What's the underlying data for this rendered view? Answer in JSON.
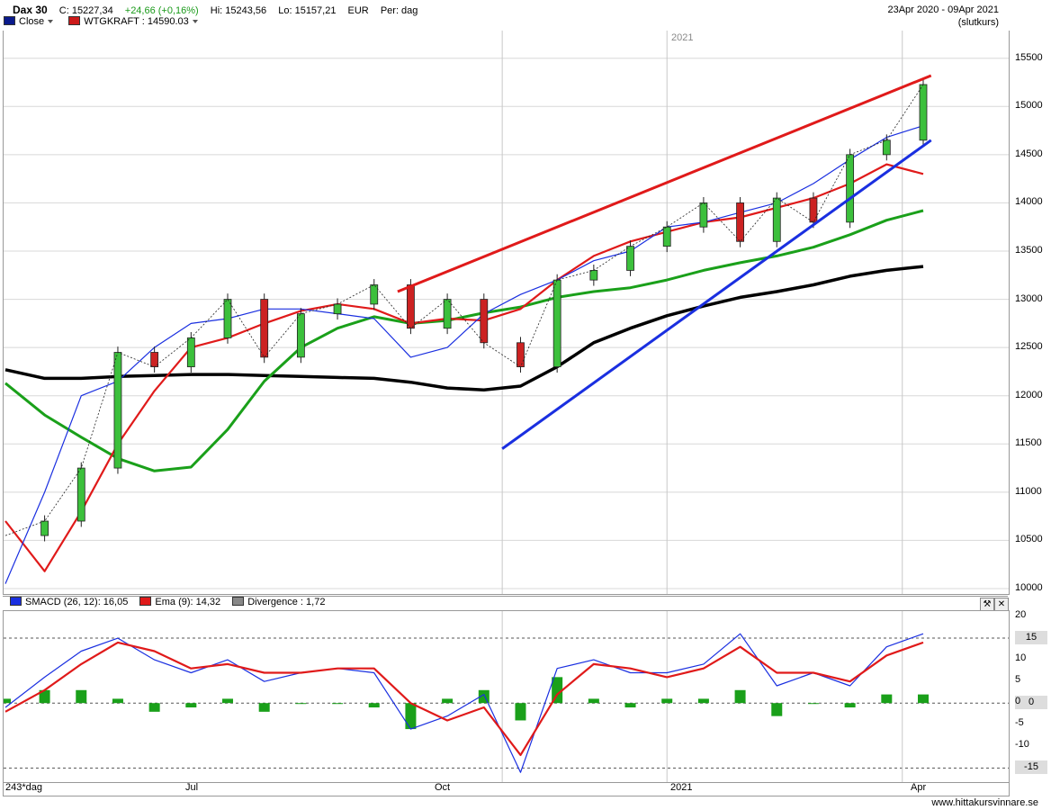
{
  "header": {
    "instrument": "Dax 30",
    "close": "C: 15227,34",
    "change": "+24,66 (+0,16%)",
    "high": "Hi: 15243,56",
    "low": "Lo: 15157,21",
    "currency": "EUR",
    "period": "Per: dag",
    "date_range": "23Apr 2020 - 09Apr 2021",
    "price_type": "(slutkurs)",
    "legend": [
      {
        "label": "Close",
        "color": "#0a1a8c"
      },
      {
        "label": "WTGKRAFT : 14590.03",
        "color": "#cc1a1a"
      }
    ]
  },
  "macd_header": {
    "legend": [
      {
        "label": "SMACD (26, 12): 16,05",
        "color": "#1a2fe0"
      },
      {
        "label": "Ema (9): 14,32",
        "color": "#e01a1a"
      },
      {
        "label": "Divergence : 1,72",
        "color": "#888888"
      }
    ]
  },
  "x_labels": {
    "bars": "243*dag",
    "months": [
      "Jul",
      "Oct",
      "2021",
      "Apr"
    ],
    "year_marker": "2021"
  },
  "footer": "www.hittakursvinnare.se",
  "chart_data": [
    {
      "type": "line",
      "title": "Dax 30",
      "ylabel": "",
      "ylim": [
        10000,
        15600
      ],
      "y_ticks": [
        10000,
        10500,
        11000,
        11500,
        12000,
        12500,
        13000,
        13500,
        14000,
        14500,
        15000,
        15500
      ],
      "x": [
        "2020-04-23",
        "2020-05-08",
        "2020-05-22",
        "2020-06-05",
        "2020-06-19",
        "2020-07-03",
        "2020-07-17",
        "2020-07-31",
        "2020-08-14",
        "2020-08-28",
        "2020-09-11",
        "2020-09-25",
        "2020-10-09",
        "2020-10-23",
        "2020-11-06",
        "2020-11-20",
        "2020-12-04",
        "2020-12-18",
        "2021-01-01",
        "2021-01-15",
        "2021-01-29",
        "2021-02-12",
        "2021-02-26",
        "2021-03-12",
        "2021-03-26",
        "2021-04-09"
      ],
      "series": [
        {
          "name": "Close",
          "color": "#1a1a1a",
          "values": [
            10550,
            10700,
            11250,
            12450,
            12300,
            12600,
            13000,
            12400,
            12850,
            12950,
            13150,
            12700,
            13000,
            12550,
            12300,
            13200,
            13300,
            13550,
            13750,
            14000,
            13600,
            14050,
            13800,
            14500,
            14650,
            15227
          ]
        }
      ],
      "overlays": [
        {
          "color": "#000000",
          "values": [
            12270,
            12180,
            12180,
            12200,
            12210,
            12220,
            12220,
            12210,
            12200,
            12190,
            12180,
            12140,
            12080,
            12060,
            12100,
            12300,
            12550,
            12700,
            12830,
            12930,
            13020,
            13080,
            13150,
            13240,
            13300,
            13340
          ]
        },
        {
          "color": "#1aa01a",
          "values": [
            12130,
            11800,
            11570,
            11350,
            11220,
            11260,
            11650,
            12150,
            12500,
            12700,
            12820,
            12750,
            12780,
            12860,
            12920,
            13020,
            13080,
            13120,
            13200,
            13300,
            13380,
            13450,
            13540,
            13670,
            13820,
            13920
          ]
        },
        {
          "color": "#e01a1a",
          "values": [
            10700,
            10180,
            10800,
            11500,
            12050,
            12500,
            12600,
            12750,
            12880,
            12950,
            12900,
            12750,
            12800,
            12780,
            12900,
            13200,
            13450,
            13600,
            13700,
            13800,
            13850,
            13950,
            14050,
            14200,
            14400,
            14300
          ]
        },
        {
          "color": "#1a2fe0",
          "values": [
            10050,
            11000,
            12000,
            12150,
            12500,
            12750,
            12800,
            12900,
            12900,
            12850,
            12800,
            12400,
            12500,
            12850,
            13050,
            13200,
            13400,
            13500,
            13750,
            13800,
            13900,
            14000,
            14200,
            14450,
            14680,
            14800
          ]
        }
      ],
      "trendlines": [
        {
          "color": "#e01a1a",
          "from": [
            "2020-09-20",
            13080
          ],
          "to": [
            "2021-04-12",
            15320
          ]
        },
        {
          "color": "#1a2fe0",
          "from": [
            "2020-10-30",
            11450
          ],
          "to": [
            "2021-04-12",
            14650
          ]
        }
      ]
    },
    {
      "type": "line",
      "title": "SMACD (26, 12)",
      "ylim": [
        -17,
        20
      ],
      "y_ticks": [
        20,
        10,
        5.0,
        0,
        -5.0,
        -10
      ],
      "marked_levels": [
        15,
        0,
        -15
      ],
      "x": [
        "2020-04-23",
        "2020-05-08",
        "2020-05-22",
        "2020-06-05",
        "2020-06-19",
        "2020-07-03",
        "2020-07-17",
        "2020-07-31",
        "2020-08-14",
        "2020-08-28",
        "2020-09-11",
        "2020-09-25",
        "2020-10-09",
        "2020-10-23",
        "2020-11-06",
        "2020-11-20",
        "2020-12-04",
        "2020-12-18",
        "2021-01-01",
        "2021-01-15",
        "2021-01-29",
        "2021-02-12",
        "2021-02-26",
        "2021-03-12",
        "2021-03-26",
        "2021-04-09"
      ],
      "series": [
        {
          "name": "SMACD (26, 12)",
          "color": "#1a2fe0",
          "values": [
            -1,
            6,
            12,
            15,
            10,
            7,
            10,
            5,
            7,
            8,
            7,
            -6,
            -3,
            2,
            -16,
            8,
            10,
            7,
            7,
            9,
            16,
            4,
            7,
            4,
            13,
            16
          ]
        },
        {
          "name": "Ema (9)",
          "color": "#e01a1a",
          "values": [
            -2,
            3,
            9,
            14,
            12,
            8,
            9,
            7,
            7,
            8,
            8,
            0,
            -4,
            -1,
            -12,
            2,
            9,
            8,
            6,
            8,
            13,
            7,
            7,
            5,
            11,
            14
          ]
        },
        {
          "name": "Divergence",
          "color": "#1aa01a",
          "values": [
            1,
            3,
            3,
            1,
            -2,
            -1,
            1,
            -2,
            0,
            0,
            -1,
            -6,
            1,
            3,
            -4,
            6,
            1,
            -1,
            1,
            1,
            3,
            -3,
            0,
            -1,
            2,
            2
          ]
        }
      ]
    }
  ]
}
